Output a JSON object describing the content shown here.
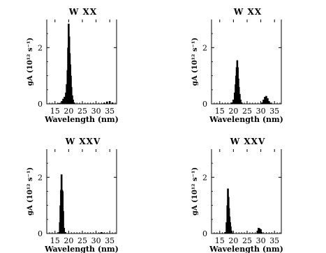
{
  "chart_data": [
    {
      "type": "area",
      "title": "W XX",
      "xlabel": "Wavelength (nm)",
      "ylabel": "gA (10¹² s⁻¹)",
      "xlim": [
        12,
        37.5
      ],
      "ylim": [
        0,
        3
      ],
      "xticks": [
        "15",
        "20",
        "25",
        "30",
        "35"
      ],
      "yticks": [
        "0",
        "2"
      ],
      "x": [
        16.5,
        17.5,
        18.0,
        18.5,
        19.0,
        19.3,
        19.6,
        19.8,
        20.0,
        20.2,
        20.4,
        20.6,
        20.8,
        21.0,
        21.3,
        21.6,
        22.0,
        33.0,
        34.0,
        35.0,
        36.0
      ],
      "y": [
        0.03,
        0.1,
        0.18,
        0.25,
        0.4,
        0.7,
        1.2,
        2.0,
        2.85,
        2.4,
        1.8,
        1.4,
        1.0,
        0.6,
        0.3,
        0.15,
        0.05,
        0.04,
        0.08,
        0.1,
        0.05
      ]
    },
    {
      "type": "area",
      "title": "W XX",
      "xlabel": "Wavelength (nm)",
      "ylabel": "gA (10¹² s⁻¹)",
      "xlim": [
        12,
        37.5
      ],
      "ylim": [
        0,
        3
      ],
      "xticks": [
        "15",
        "20",
        "25",
        "30",
        "35"
      ],
      "yticks": [
        "0",
        "2"
      ],
      "x": [
        19.5,
        20.0,
        20.5,
        20.8,
        21.0,
        21.2,
        21.4,
        21.6,
        21.8,
        22.0,
        22.3,
        22.6,
        23.0,
        30.5,
        31.0,
        31.5,
        32.0,
        32.5,
        33.0,
        33.5
      ],
      "y": [
        0.05,
        0.15,
        0.4,
        0.7,
        1.0,
        1.3,
        1.55,
        1.3,
        0.9,
        0.6,
        0.35,
        0.15,
        0.05,
        0.05,
        0.15,
        0.25,
        0.28,
        0.2,
        0.1,
        0.04
      ]
    },
    {
      "type": "area",
      "title": "W XXV",
      "xlabel": "Wavelength (nm)",
      "ylabel": "gA (10¹² s⁻¹)",
      "xlim": [
        12,
        37.5
      ],
      "ylim": [
        0,
        3
      ],
      "xticks": [
        "15",
        "20",
        "25",
        "30",
        "35"
      ],
      "yticks": [
        "0",
        "2"
      ],
      "x": [
        16.5,
        16.8,
        17.0,
        17.2,
        17.4,
        17.6,
        17.8,
        18.0,
        18.3,
        18.6,
        31.5,
        32.0,
        32.5
      ],
      "y": [
        0.05,
        0.4,
        1.0,
        1.55,
        2.1,
        1.55,
        1.5,
        0.8,
        0.2,
        0.05,
        0.02,
        0.05,
        0.02
      ]
    },
    {
      "type": "area",
      "title": "W XXV",
      "xlabel": "Wavelength (nm)",
      "ylabel": "gA (10¹² s⁻¹)",
      "xlim": [
        12,
        37.5
      ],
      "ylim": [
        0,
        3
      ],
      "xticks": [
        "15",
        "20",
        "25",
        "30",
        "35"
      ],
      "yticks": [
        "0",
        "2"
      ],
      "x": [
        17.0,
        17.5,
        17.8,
        18.0,
        18.2,
        18.4,
        18.6,
        18.8,
        19.0,
        19.3,
        19.6,
        28.8,
        29.2,
        29.6,
        30.0,
        30.3
      ],
      "y": [
        0.05,
        0.4,
        1.0,
        1.6,
        1.3,
        0.9,
        0.6,
        0.4,
        0.25,
        0.1,
        0.03,
        0.1,
        0.2,
        0.18,
        0.15,
        0.05
      ]
    }
  ]
}
